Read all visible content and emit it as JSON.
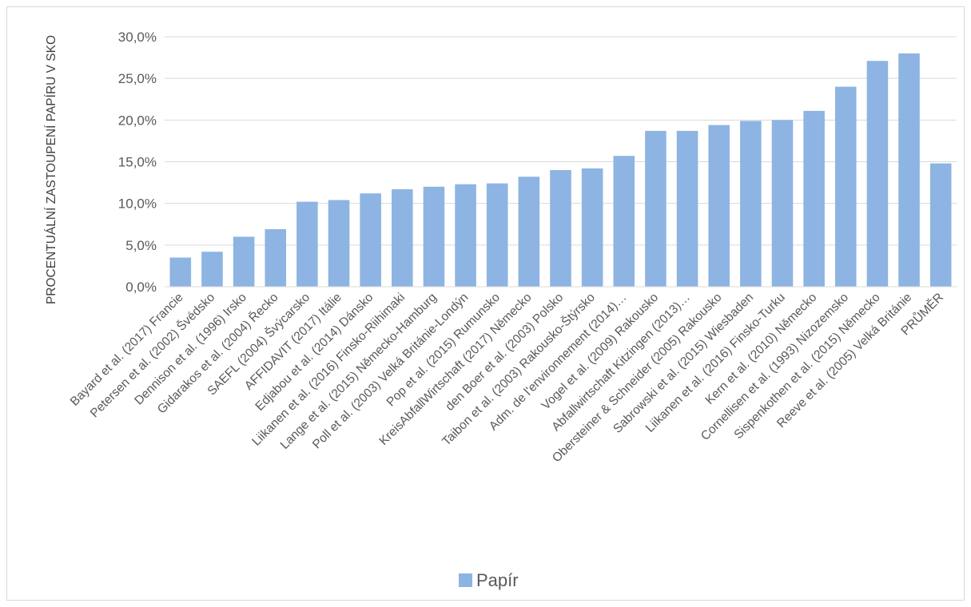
{
  "chart_data": {
    "type": "bar",
    "ylabel": "PROCENTUÁLNÍ ZASTOUPENÍ PAPÍRU V SKO",
    "xlabel": "",
    "ylim": [
      0,
      30
    ],
    "yticks": [
      "0,0%",
      "5,0%",
      "10,0%",
      "15,0%",
      "20,0%",
      "25,0%",
      "30,0%"
    ],
    "ytick_values": [
      0,
      5,
      10,
      15,
      20,
      25,
      30
    ],
    "grid": true,
    "legend_position": "bottom",
    "bar_color": "#8db4e2",
    "categories": [
      "Bayard et al. (2017)  Francie",
      "Petersen et al. (2002)  Švédsko",
      "Dennison et al. (1996) Irsko",
      "Gidarakos et al. (2004) Řecko",
      "SAEFL (2004) Švýcarsko",
      "AFFIDAVIT (2017)  Itálie",
      "Edjabou et al. (2014) Dánsko",
      "Liikanen et al. (2016)  Finsko-Riihimaki",
      "Lange et al. (2015) Německo-Hamburg",
      "Poll et al. (2003) Velká Británie-Londýn",
      "Pop et al. (2015) Rumunsko",
      "KreisAbfallWirtschaft (2017) Německo",
      "den Boer et al. (2003) Polsko",
      "Taibon et al. (2003) Rakousko-Štýrsko",
      "Adm. de l'environnement (2014)…",
      "Vogel et al. (2009) Rakousko",
      "Abfallwirtschaft Kitzingen (2013)…",
      "Obersteiner & Schneider (2005) Rakousko",
      "Sabrowski et al. (2015) Wiesbaden",
      "Liikanen et al. (2016)  Finsko-Turku",
      "Kern et al.  (2010) Německo",
      "Cornellisen et al. (1993)  Nizozemsko",
      "Sispenkothen et al.  (2015) Německo",
      "Reeve et al. (2005) Velká Británie",
      "PRŮMĚR"
    ],
    "series": [
      {
        "name": "Papír",
        "values": [
          3.5,
          4.2,
          6.0,
          6.9,
          10.2,
          10.4,
          11.2,
          11.7,
          12.0,
          12.3,
          12.4,
          13.2,
          14.0,
          14.2,
          15.7,
          18.7,
          18.7,
          19.4,
          19.9,
          20.0,
          21.1,
          24.0,
          27.1,
          28.0,
          14.8
        ]
      }
    ]
  }
}
